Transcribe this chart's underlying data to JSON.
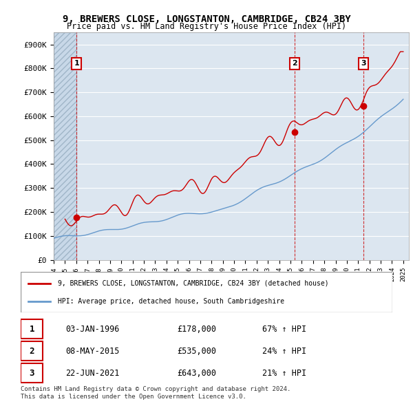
{
  "title": "9, BREWERS CLOSE, LONGSTANTON, CAMBRIDGE, CB24 3BY",
  "subtitle": "Price paid vs. HM Land Registry's House Price Index (HPI)",
  "red_line_label": "9, BREWERS CLOSE, LONGSTANTON, CAMBRIDGE, CB24 3BY (detached house)",
  "blue_line_label": "HPI: Average price, detached house, South Cambridgeshire",
  "transactions": [
    {
      "num": 1,
      "date": "03-JAN-1996",
      "price": 178000,
      "pct": "67%",
      "dir": "↑"
    },
    {
      "num": 2,
      "date": "08-MAY-2015",
      "price": 535000,
      "pct": "24%",
      "dir": "↑"
    },
    {
      "num": 3,
      "date": "22-JUN-2021",
      "price": 643000,
      "pct": "21%",
      "dir": "↑"
    }
  ],
  "footnote1": "Contains HM Land Registry data © Crown copyright and database right 2024.",
  "footnote2": "This data is licensed under the Open Government Licence v3.0.",
  "ylim": [
    0,
    950000
  ],
  "yticks": [
    0,
    100000,
    200000,
    300000,
    400000,
    500000,
    600000,
    700000,
    800000,
    900000
  ],
  "ytick_labels": [
    "£0",
    "£100K",
    "£200K",
    "£300K",
    "£400K",
    "£500K",
    "£600K",
    "£700K",
    "£800K",
    "£900K"
  ],
  "background_color": "#ffffff",
  "plot_bg_color": "#dce6f0",
  "hatch_color": "#b8c8d8",
  "grid_color": "#ffffff",
  "red_color": "#cc0000",
  "blue_color": "#6699cc",
  "vline_color": "#cc0000",
  "marker_color": "#cc0000",
  "label_box_color": "#cc0000"
}
